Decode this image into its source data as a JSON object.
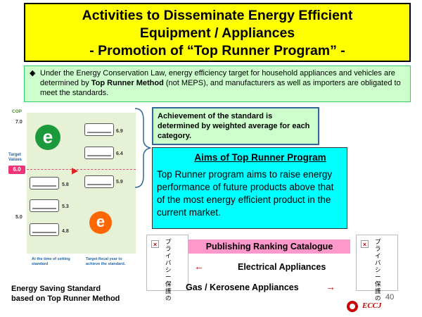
{
  "title": {
    "line1": "Activities to Disseminate Energy Efficient",
    "line2": "Equipment / Appliances",
    "line3": "- Promotion of “Top Runner Program” -"
  },
  "intro": {
    "bullet": "◆",
    "text_part1": "Under the Energy Conservation Law,  energy efficiency target for household appliances and vehicles are determined by ",
    "text_bold": "Top Runner Method",
    "text_part2": " (not MEPS), and manufacturers as well as importers are obligated to meet the standards."
  },
  "chart": {
    "cop_label": "COP",
    "tick_7": "7.0",
    "tick_5": "5.0",
    "target_label_1": "Target",
    "target_label_2": "Values",
    "target_value": "6.0",
    "units": [
      "6.9",
      "6.4",
      "5.8",
      "5.9",
      "5.3",
      "4.8"
    ],
    "x_left_caption": "At the time of setting standard",
    "x_right_caption": "Target fiscal year to achieve the standard.",
    "caption_line1": "Energy Saving Standard",
    "caption_line2": "based on Top Runner Method"
  },
  "achievement": {
    "text": "Achievement of the standard is determined by weighted average for each category."
  },
  "aims": {
    "title": "Aims of Top Runner Program",
    "body": "Top Runner program aims to raise energy performance of future products above that of the most energy efficient product in the current market."
  },
  "placeholder_image": {
    "x_symbol": "×",
    "vertical_text": "プライバシー保護の"
  },
  "publishing": {
    "label": "Publishing Ranking Catalogue",
    "electrical": "Electrical Appliances",
    "gas": "Gas / Kerosene Appliances",
    "arrow_left": "←",
    "arrow_right": "→"
  },
  "footer": {
    "page_number": "40",
    "logo_text": "ECCJ"
  },
  "colors": {
    "title_bg": "#ffff00",
    "intro_bg": "#ccffcc",
    "aims_bg": "#00ffff",
    "publishing_bg": "#ff99cc",
    "accent_red": "#dd0000"
  }
}
